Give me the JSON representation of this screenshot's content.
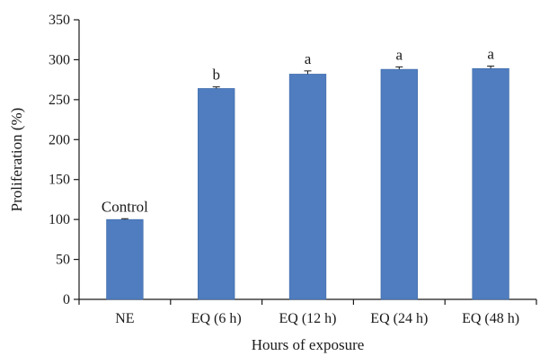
{
  "chart_data": {
    "type": "bar",
    "title": "",
    "xlabel": "Hours of exposure",
    "ylabel": "Proliferation (%)",
    "categories": [
      "NE",
      "EQ (6 h)",
      "EQ (12 h)",
      "EQ (24 h)",
      "EQ (48 h)"
    ],
    "values": [
      100,
      264,
      282,
      288,
      289
    ],
    "errors": [
      1,
      2,
      4,
      3,
      3
    ],
    "bar_labels": [
      "Control",
      "b",
      "a",
      "a",
      "a"
    ],
    "ylim": [
      0,
      350
    ],
    "yticks": [
      0,
      50,
      100,
      150,
      200,
      250,
      300,
      350
    ],
    "grid": false,
    "legend": "none",
    "colors": {
      "bar": "#4f7dbf",
      "bar_edge": "#3d6aa8",
      "axis": "#1a1a1a",
      "error": "#1a1a1a"
    }
  }
}
